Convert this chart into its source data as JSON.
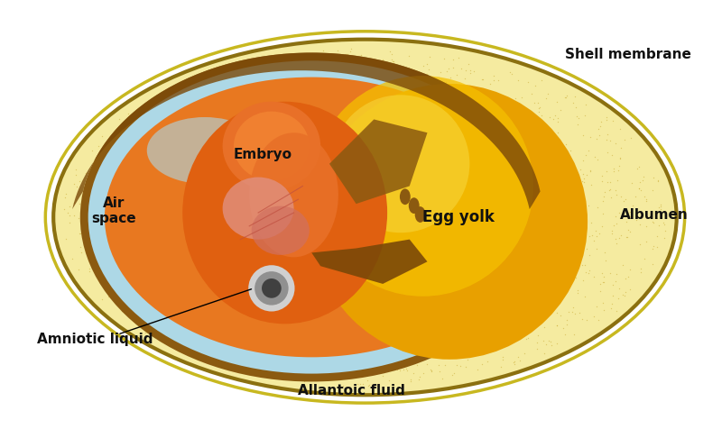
{
  "bg_color": "#ffffff",
  "labels": {
    "shell_membrane": "Shell membrane",
    "albumen": "Albumen",
    "egg_yolk": "Egg yolk",
    "embryo": "Embryo",
    "air_space": "Air\nspace",
    "amniotic_liquid": "Amniotic liquid",
    "allantoic_fluid": "Allantoic fluid"
  },
  "colors": {
    "outer_shell_border": "#c8b820",
    "albumen_fill": "#f5eba0",
    "albumen_dot": "#c8a830",
    "shell_rim": "#8b7010",
    "inner_brown": "#8b5a10",
    "light_blue": "#add8e6",
    "orange_inner": "#e87820",
    "yolk_dark": "#e8a000",
    "yolk_mid": "#f5c000",
    "yolk_light": "#f8d840",
    "embryo_dark": "#e06010",
    "embryo_mid": "#e87028",
    "embryo_light": "#f08030",
    "pink_organ": "#e09080",
    "pink_organ2": "#d07060",
    "vein": "#c05040",
    "gray_outer": "#d0d0d0",
    "gray_mid": "#909090",
    "gray_dark": "#404040",
    "brown_wing": "#8b5a10",
    "brown_limb": "#7a4808",
    "brown_band": "#7a4808",
    "text": "#111111"
  }
}
